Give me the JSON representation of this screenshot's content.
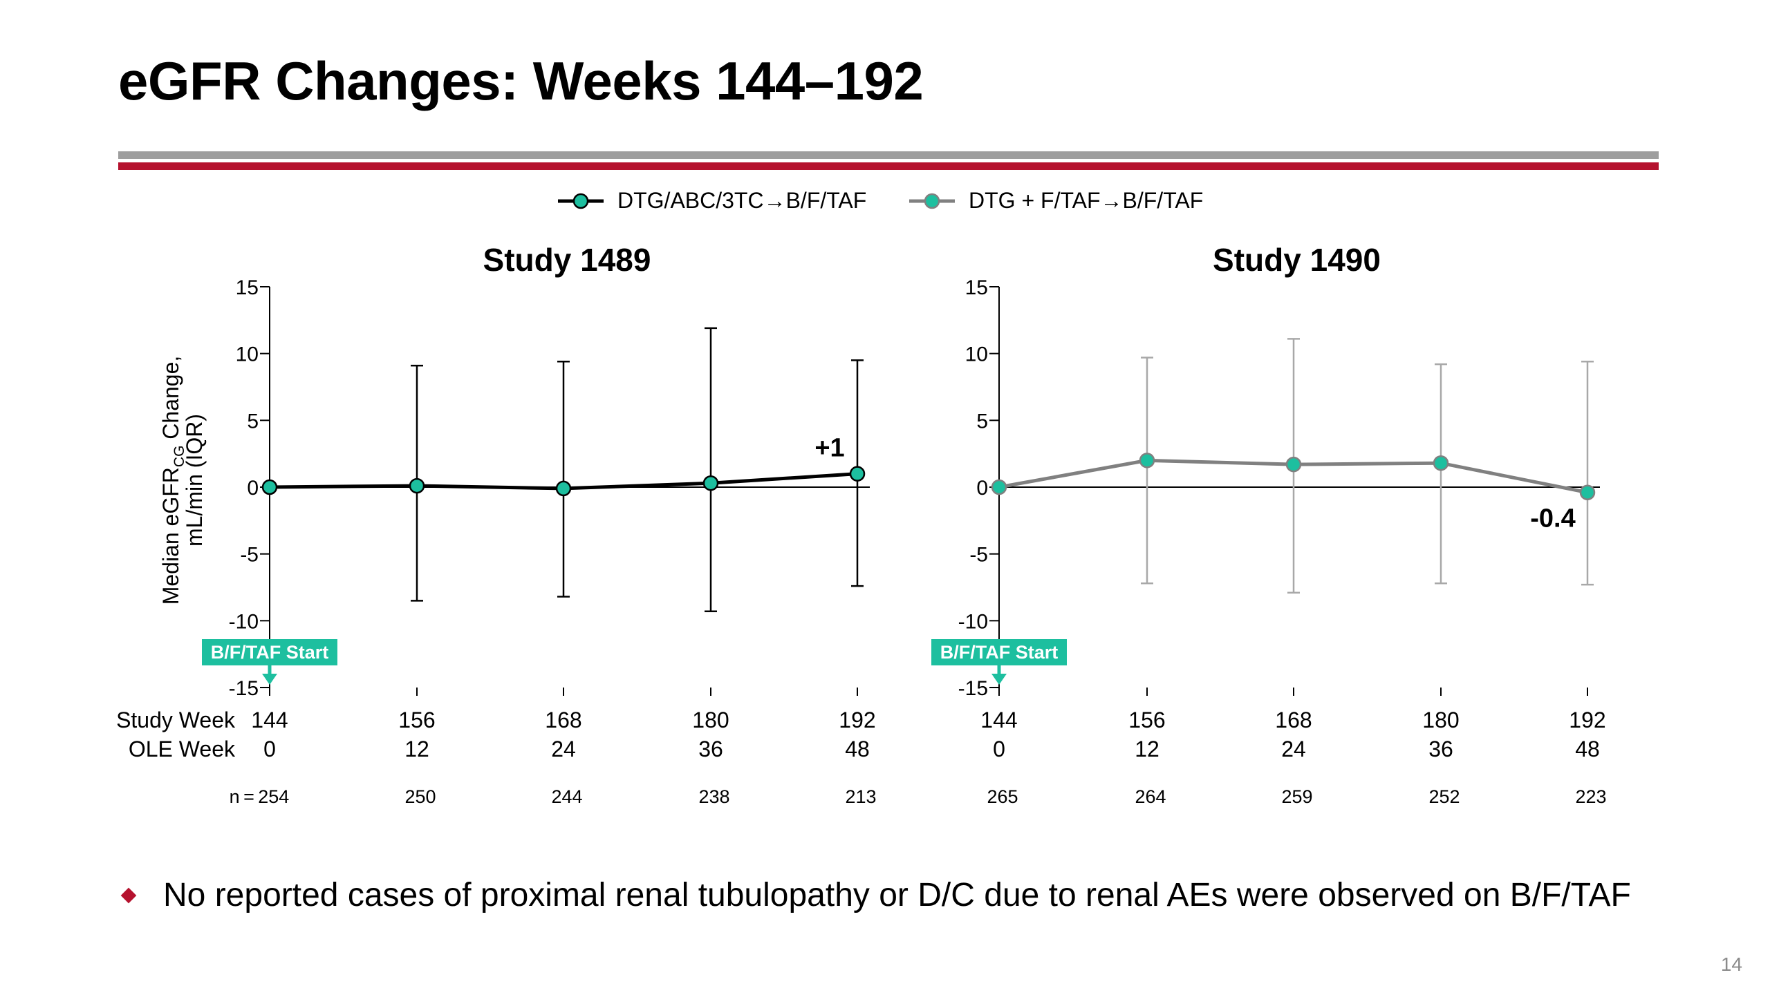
{
  "slide": {
    "title": "eGFR Changes: Weeks 144–192",
    "bullet": "No reported cases of proximal renal tubulopathy or D/C due to renal AEs were observed on B/F/TAF",
    "page_number": "14"
  },
  "colors": {
    "rule_gray": "#9e9e9e",
    "rule_red": "#b5122e",
    "marker_fill": "#1dbf9f",
    "series_1_line": "#000000",
    "series_2_line": "#808080",
    "series_1_error": "#000000",
    "series_2_error": "#a8a8a8",
    "annotation_box": "#1dbf9f"
  },
  "chart_data": [
    {
      "type": "line",
      "title": "Study 1489",
      "ylabel_main": "Median eGFR",
      "ylabel_sub": "CG",
      "ylabel_rest": " Change,",
      "ylabel_line2": "mL/min (IQR)",
      "ylim": [
        -15,
        15
      ],
      "yticks": [
        15,
        10,
        5,
        0,
        -5,
        -10,
        -15
      ],
      "x_row_labels": [
        "Study Week",
        "OLE Week"
      ],
      "x": [
        "144",
        "156",
        "168",
        "180",
        "192"
      ],
      "x_ole": [
        "0",
        "12",
        "24",
        "36",
        "48"
      ],
      "n_prefix": "n = ",
      "n": [
        "254",
        "250",
        "244",
        "238",
        "213"
      ],
      "series": [
        {
          "name": "DTG/ABC/3TC→B/F/TAF",
          "values": [
            0,
            0.1,
            -0.1,
            0.3,
            1.0
          ],
          "iqr_low": [
            0,
            -8.5,
            -8.2,
            -9.3,
            -7.4
          ],
          "iqr_high": [
            0,
            9.1,
            9.4,
            11.9,
            9.5
          ]
        }
      ],
      "end_label": "+1",
      "start_annotation": "B/F/TAF Start"
    },
    {
      "type": "line",
      "title": "Study 1490",
      "ylim": [
        -15,
        15
      ],
      "yticks": [
        15,
        10,
        5,
        0,
        -5,
        -10,
        -15
      ],
      "x": [
        "144",
        "156",
        "168",
        "180",
        "192"
      ],
      "x_ole": [
        "0",
        "12",
        "24",
        "36",
        "48"
      ],
      "n": [
        "265",
        "264",
        "259",
        "252",
        "223"
      ],
      "series": [
        {
          "name": "DTG + F/TAF→B/F/TAF",
          "values": [
            0,
            2.0,
            1.7,
            1.8,
            -0.4
          ],
          "iqr_low": [
            0,
            -7.2,
            -7.9,
            -7.2,
            -7.3
          ],
          "iqr_high": [
            0,
            9.7,
            11.1,
            9.2,
            9.4
          ]
        }
      ],
      "end_label": "-0.4",
      "start_annotation": "B/F/TAF Start"
    }
  ]
}
